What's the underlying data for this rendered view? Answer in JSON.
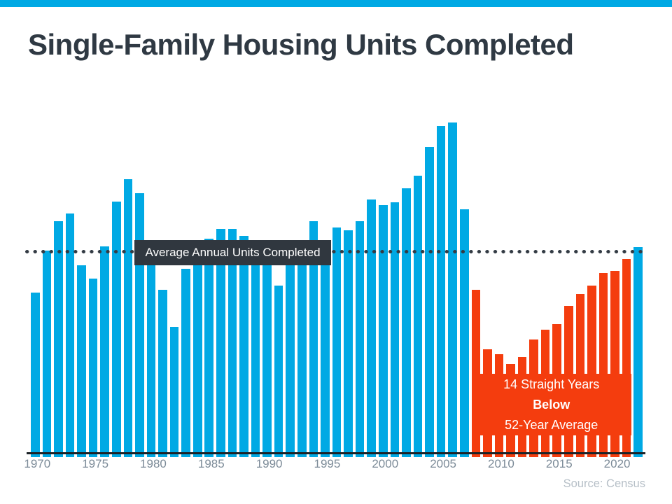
{
  "page": {
    "title": "Single-Family Housing Units Completed",
    "source": "Source: Census"
  },
  "chart_data": {
    "type": "bar",
    "title": "Single-Family Housing Units Completed",
    "xlabel": "",
    "ylabel": "",
    "unit": "thousands of units (estimated from bar heights)",
    "grid": false,
    "legend": "none",
    "x_tick_labels": [
      "1970",
      "1975",
      "1980",
      "1985",
      "1990",
      "1995",
      "2000",
      "2005",
      "2010",
      "2015",
      "2020"
    ],
    "years": [
      1970,
      1971,
      1972,
      1973,
      1974,
      1975,
      1976,
      1977,
      1978,
      1979,
      1980,
      1981,
      1982,
      1983,
      1984,
      1985,
      1986,
      1987,
      1988,
      1989,
      1990,
      1991,
      1992,
      1993,
      1994,
      1995,
      1996,
      1997,
      1998,
      1999,
      2000,
      2001,
      2002,
      2003,
      2004,
      2005,
      2006,
      2007,
      2008,
      2009,
      2010,
      2011,
      2012,
      2013,
      2014,
      2015,
      2016,
      2017,
      2018,
      2019,
      2020,
      2021,
      2022
    ],
    "values": [
      802,
      1014,
      1160,
      1197,
      940,
      875,
      1034,
      1258,
      1369,
      1301,
      957,
      819,
      632,
      924,
      1025,
      1072,
      1120,
      1123,
      1085,
      1026,
      966,
      838,
      964,
      1039,
      1160,
      1066,
      1129,
      1116,
      1160,
      1270,
      1242,
      1256,
      1325,
      1386,
      1532,
      1636,
      1654,
      1218,
      819,
      520,
      496,
      447,
      483,
      569,
      620,
      648,
      738,
      795,
      840,
      903,
      912,
      970,
      1030
    ],
    "below_average_years": {
      "start": 2008,
      "end": 2021
    },
    "average_line": {
      "label": "Average Annual Units Completed",
      "value": 1008,
      "style": "dotted"
    },
    "annotation": {
      "line1": "14 Straight Years",
      "line2": "Below",
      "line3": "52-Year Average"
    },
    "colors": {
      "bar_blue": "#00a9e4",
      "bar_orange": "#f43d0e",
      "dotted_line": "#333b44",
      "label_box_bg": "#30373f",
      "label_box_text": "#ffffff",
      "annotation_text": "#ffffff",
      "axis_line": "#1c2227",
      "tick_text": "#7c8b98",
      "source_text": "#b6bfc7",
      "title_text": "#2f3943",
      "top_accent": "#00a9e4"
    }
  }
}
